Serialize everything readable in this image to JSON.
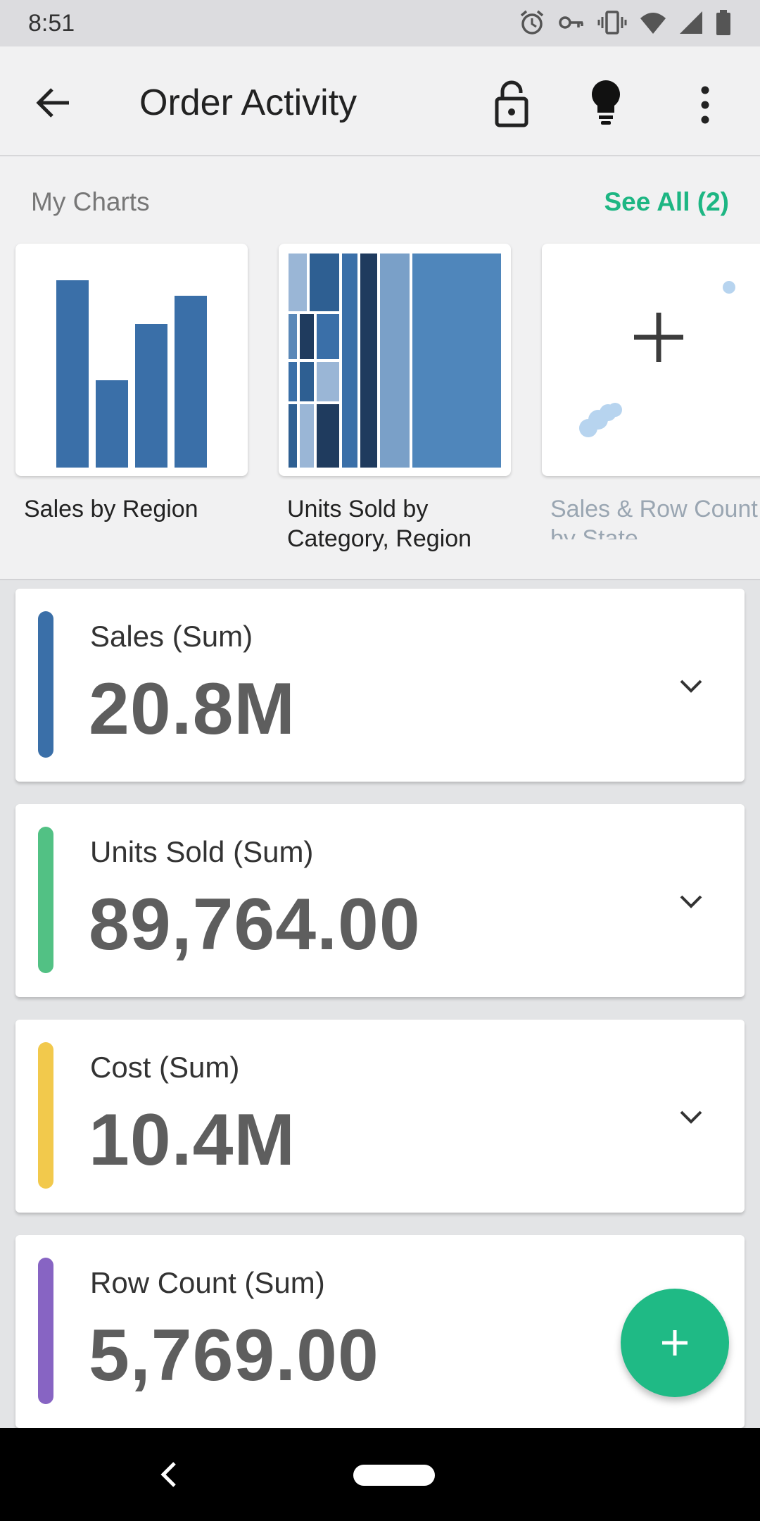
{
  "status_bar": {
    "time": "8:51"
  },
  "app_bar": {
    "title": "Order Activity"
  },
  "my_charts": {
    "section_title": "My Charts",
    "see_all": "See All (2)",
    "items": [
      {
        "label": "Sales by Region"
      },
      {
        "label_line1": "Units Sold by",
        "label_line2": "Category, Region"
      },
      {
        "label_line1": "Sales & Row Count",
        "label_line2": "by State"
      }
    ]
  },
  "kpis": [
    {
      "label": "Sales (Sum)",
      "value": "20.8M",
      "color": "#3a6fa8"
    },
    {
      "label": "Units Sold (Sum)",
      "value": "89,764.00",
      "color": "#52c184"
    },
    {
      "label": "Cost (Sum)",
      "value": "10.4M",
      "color": "#f2c94c"
    },
    {
      "label": "Row Count (Sum)",
      "value": "5,769.00",
      "color": "#8764c3"
    }
  ],
  "colors": {
    "accent": "#1fba85",
    "see_all": "#1db683",
    "chart_blue": "#3a6fa8"
  },
  "icons": [
    "arrow-back-icon",
    "lock-open-icon",
    "lightbulb-icon",
    "more-vert-icon",
    "chevron-down-icon",
    "plus-icon"
  ]
}
